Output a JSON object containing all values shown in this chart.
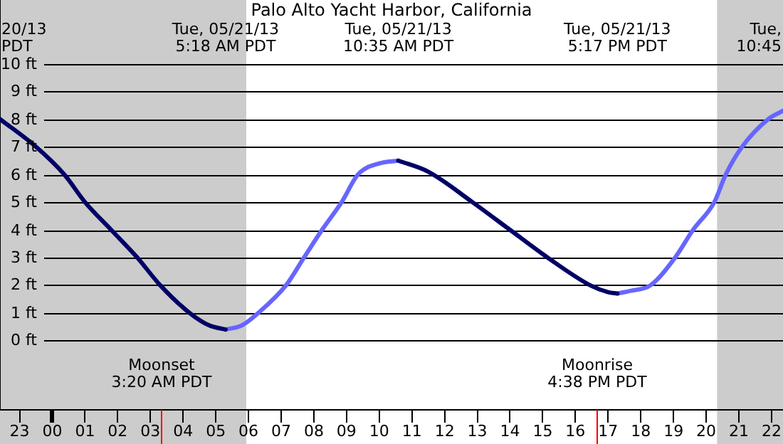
{
  "chart_data": {
    "type": "line",
    "title": "Palo Alto Yacht Harbor, California",
    "xlim": [
      "--05-20T22:24",
      "--05-21T22:21"
    ],
    "ylim": [
      -2.5,
      12.3
    ],
    "xticks": [
      {
        "value": "--05-20T23:00",
        "label": "23"
      },
      {
        "value": "--05-21T00:00",
        "label": "00"
      },
      {
        "value": "--05-21T01:00",
        "label": "01"
      },
      {
        "value": "--05-21T02:00",
        "label": "02"
      },
      {
        "value": "--05-21T03:00",
        "label": "03"
      },
      {
        "value": "--05-21T04:00",
        "label": "04"
      },
      {
        "value": "--05-21T05:00",
        "label": "05"
      },
      {
        "value": "--05-21T06:00",
        "label": "06"
      },
      {
        "value": "--05-21T07:00",
        "label": "07"
      },
      {
        "value": "--05-21T08:00",
        "label": "08"
      },
      {
        "value": "--05-21T09:00",
        "label": "09"
      },
      {
        "value": "--05-21T10:00",
        "label": "10"
      },
      {
        "value": "--05-21T11:00",
        "label": "11"
      },
      {
        "value": "--05-21T12:00",
        "label": "12"
      },
      {
        "value": "--05-21T13:00",
        "label": "13"
      },
      {
        "value": "--05-21T14:00",
        "label": "14"
      },
      {
        "value": "--05-21T15:00",
        "label": "15"
      },
      {
        "value": "--05-21T16:00",
        "label": "16"
      },
      {
        "value": "--05-21T17:00",
        "label": "17"
      },
      {
        "value": "--05-21T18:00",
        "label": "18"
      },
      {
        "value": "--05-21T19:00",
        "label": "19"
      },
      {
        "value": "--05-21T20:00",
        "label": "20"
      },
      {
        "value": "--05-21T21:00",
        "label": "21"
      },
      {
        "value": "--05-21T22:00",
        "label": "22"
      }
    ],
    "yticks": [
      {
        "value": 0,
        "label": "0 ft"
      },
      {
        "value": 1,
        "label": "1 ft"
      },
      {
        "value": 2,
        "label": "2 ft"
      },
      {
        "value": 3,
        "label": "3 ft"
      },
      {
        "value": 4,
        "label": "4 ft"
      },
      {
        "value": 5,
        "label": "5 ft"
      },
      {
        "value": 6,
        "label": "6 ft"
      },
      {
        "value": 7,
        "label": "7 ft"
      },
      {
        "value": 8,
        "label": "8 ft"
      },
      {
        "value": 9,
        "label": "9 ft"
      },
      {
        "value": 10,
        "label": "10 ft"
      }
    ],
    "grid": "y",
    "legend": false,
    "marker": "none",
    "series": [
      {
        "color": "#000066",
        "x": [
          "--05-20T22:24",
          "--05-20T23:30",
          "--05-21T00:22",
          "--05-21T01:00",
          "--05-21T01:48",
          "--05-21T02:36",
          "--05-21T03:18",
          "--05-21T04:12",
          "--05-21T04:48",
          "--05-21T05:18",
          "--05-21T08:00",
          "--05-21T10:35",
          "--05-21T11:30",
          "--05-21T12:51",
          "--05-21T14:00",
          "--05-21T15:09",
          "--05-21T16:27",
          "--05-21T17:00",
          "--05-21T17:17"
        ],
        "values": [
          8.0,
          7,
          6,
          5,
          4,
          3,
          2,
          1,
          0.55,
          0.4,
          null,
          6.5,
          6.1,
          5,
          4,
          3,
          2,
          1.75,
          1.7
        ]
      },
      {
        "color": "#6666ff",
        "x": [
          "--05-21T05:18",
          "--05-21T05:48",
          "--05-21T06:18",
          "--05-21T07:09",
          "--05-21T07:42",
          "--05-21T08:15",
          "--05-21T08:51",
          "--05-21T09:21",
          "--05-21T10:00",
          "--05-21T10:35",
          "--05-21T14:00",
          "--05-21T17:17",
          "--05-21T17:42",
          "--05-21T18:18",
          "--05-21T19:03",
          "--05-21T19:36",
          "--05-21T20:15",
          "--05-21T20:36",
          "--05-21T21:06",
          "--05-21T21:54",
          "--05-21T22:21"
        ],
        "values": [
          0.4,
          0.55,
          1,
          2,
          3,
          4,
          5,
          6,
          6.4,
          6.5,
          null,
          1.7,
          1.8,
          2,
          3,
          4,
          5,
          6,
          7,
          8,
          8.3
        ]
      }
    ],
    "bands": [
      {
        "axis": "x",
        "from": "--05-20T22:24",
        "to": "--05-21T05:56",
        "color": "#cccccc"
      },
      {
        "axis": "x",
        "from": "--05-21T20:20",
        "to": "--05-21T22:21",
        "color": "#cccccc"
      }
    ],
    "ref_lines": [
      {
        "axis": "x",
        "value": "--05-21T03:20",
        "label": "Moonset\n3:20 AM PDT",
        "color": "#ff0000"
      },
      {
        "axis": "x",
        "value": "--05-21T16:38",
        "label": "Moonrise\n4:38 PM PDT",
        "color": "#ff0000"
      }
    ],
    "annotations": [
      "20/13\nPDT",
      "Tue, 05/21/13\n5:18 AM PDT",
      "Tue, 05/21/13\n10:35 AM PDT",
      "Tue, 05/21/13\n5:17 PM PDT",
      "Tue,\n10:45"
    ]
  }
}
